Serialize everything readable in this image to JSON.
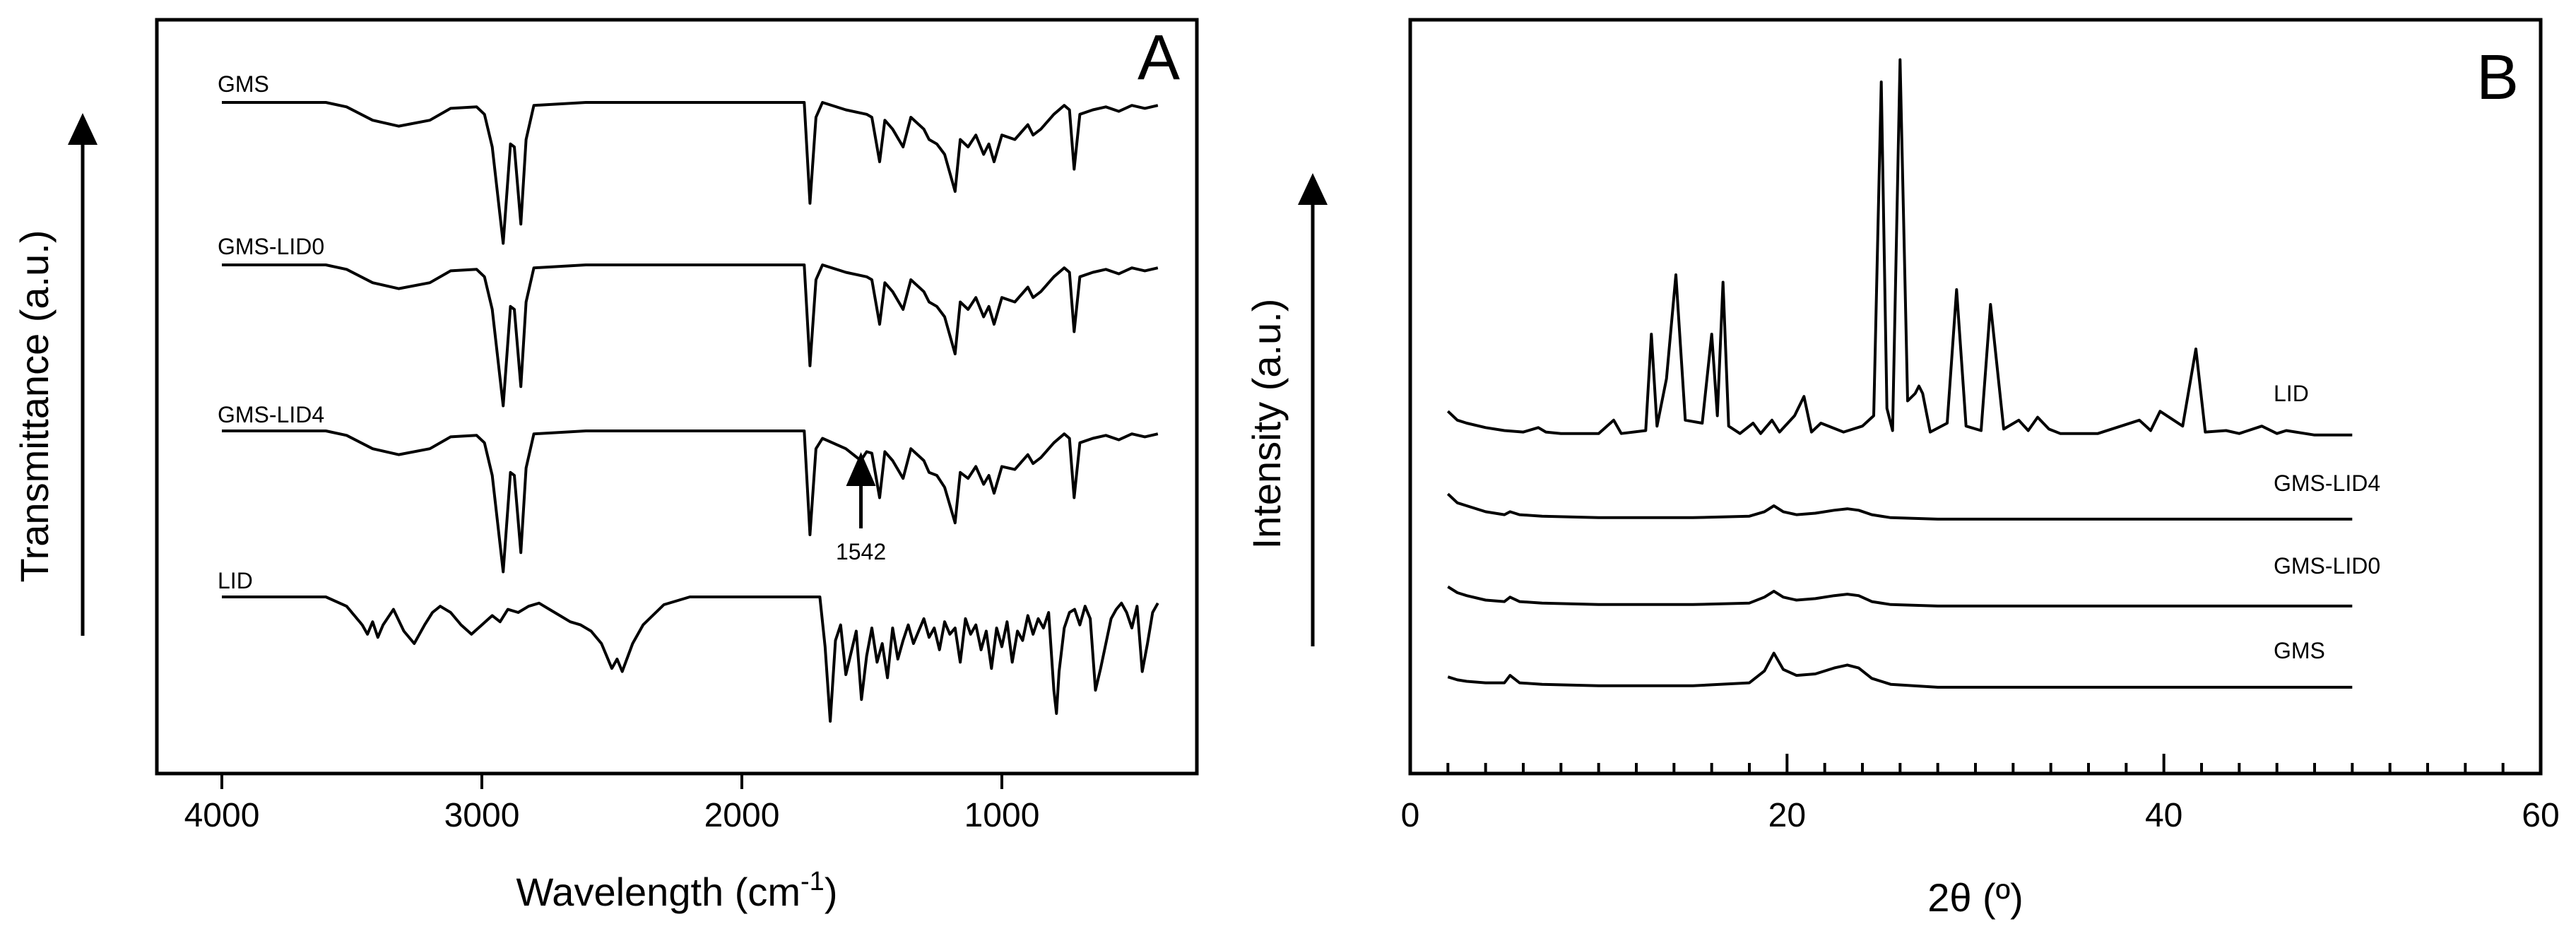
{
  "chart_data": [
    {
      "panel": "A",
      "type": "line",
      "title": "",
      "xlabel_main": "Wavelength (cm",
      "xlabel_sup": "-1",
      "xlabel_end": ")",
      "ylabel": "Transmittance (a.u.)",
      "xlim": [
        4250,
        250
      ],
      "xticks": [
        4000,
        3000,
        2000,
        1000
      ],
      "xtick_labels": [
        "4000",
        "3000",
        "2000",
        "1000"
      ],
      "grid": false,
      "series": [
        {
          "name": "GMS",
          "label": "GMS",
          "x": [
            4000,
            3600,
            3520,
            3420,
            3320,
            3200,
            3120,
            3020,
            2990,
            2960,
            2918,
            2890,
            2875,
            2850,
            2830,
            2800,
            2600,
            2200,
            1900,
            1760,
            1738,
            1715,
            1690,
            1600,
            1520,
            1500,
            1470,
            1450,
            1420,
            1380,
            1350,
            1300,
            1280,
            1250,
            1220,
            1180,
            1160,
            1130,
            1100,
            1070,
            1050,
            1030,
            1000,
            950,
            900,
            880,
            850,
            800,
            760,
            740,
            722,
            700,
            650,
            600,
            550,
            500,
            450,
            400
          ],
          "y": [
            0,
            0,
            3,
            12,
            16,
            12,
            4,
            3,
            8,
            30,
            95,
            28,
            30,
            82,
            25,
            2,
            0,
            0,
            0,
            0,
            68,
            10,
            0,
            5,
            8,
            10,
            40,
            12,
            18,
            30,
            10,
            18,
            25,
            28,
            35,
            60,
            25,
            30,
            22,
            35,
            28,
            40,
            22,
            25,
            15,
            22,
            18,
            8,
            2,
            5,
            45,
            8,
            5,
            3,
            6,
            2,
            4,
            2
          ]
        },
        {
          "name": "GMS-LID0",
          "label": "GMS-LID0",
          "x": [
            4000,
            3600,
            3520,
            3420,
            3320,
            3200,
            3120,
            3020,
            2990,
            2960,
            2918,
            2890,
            2875,
            2850,
            2830,
            2800,
            2600,
            2200,
            1900,
            1760,
            1738,
            1715,
            1690,
            1600,
            1520,
            1500,
            1470,
            1450,
            1420,
            1380,
            1350,
            1300,
            1280,
            1250,
            1220,
            1180,
            1160,
            1130,
            1100,
            1070,
            1050,
            1030,
            1000,
            950,
            900,
            880,
            850,
            800,
            760,
            740,
            722,
            700,
            650,
            600,
            550,
            500,
            450,
            400
          ],
          "y": [
            0,
            0,
            3,
            12,
            16,
            12,
            4,
            3,
            8,
            30,
            95,
            28,
            30,
            82,
            25,
            2,
            0,
            0,
            0,
            0,
            68,
            10,
            0,
            5,
            8,
            10,
            40,
            12,
            18,
            30,
            10,
            18,
            25,
            28,
            35,
            60,
            25,
            30,
            22,
            35,
            28,
            40,
            22,
            25,
            15,
            22,
            18,
            8,
            2,
            5,
            45,
            8,
            5,
            3,
            6,
            2,
            4,
            2
          ]
        },
        {
          "name": "GMS-LID4",
          "label": "GMS-LID4",
          "x": [
            4000,
            3600,
            3520,
            3420,
            3320,
            3200,
            3120,
            3020,
            2990,
            2960,
            2918,
            2890,
            2875,
            2850,
            2830,
            2800,
            2600,
            2200,
            1900,
            1760,
            1738,
            1715,
            1690,
            1600,
            1542,
            1520,
            1500,
            1470,
            1450,
            1420,
            1380,
            1350,
            1300,
            1280,
            1250,
            1220,
            1180,
            1160,
            1130,
            1100,
            1070,
            1050,
            1030,
            1000,
            950,
            900,
            880,
            850,
            800,
            760,
            740,
            722,
            700,
            650,
            600,
            550,
            500,
            450,
            400
          ],
          "y": [
            0,
            0,
            3,
            12,
            16,
            12,
            4,
            3,
            8,
            30,
            95,
            28,
            30,
            82,
            25,
            2,
            0,
            0,
            0,
            0,
            70,
            12,
            5,
            12,
            20,
            14,
            15,
            45,
            14,
            20,
            32,
            12,
            20,
            28,
            30,
            38,
            62,
            28,
            32,
            24,
            36,
            30,
            42,
            24,
            26,
            16,
            22,
            18,
            8,
            2,
            5,
            45,
            8,
            5,
            3,
            6,
            2,
            4,
            2
          ]
        },
        {
          "name": "LID",
          "label": "LID",
          "x": [
            4000,
            3600,
            3520,
            3460,
            3440,
            3420,
            3400,
            3380,
            3340,
            3300,
            3260,
            3220,
            3190,
            3160,
            3120,
            3080,
            3040,
            3000,
            2960,
            2930,
            2900,
            2860,
            2820,
            2780,
            2740,
            2700,
            2660,
            2620,
            2580,
            2540,
            2500,
            2480,
            2460,
            2420,
            2380,
            2300,
            2200,
            1900,
            1700,
            1680,
            1660,
            1640,
            1620,
            1600,
            1560,
            1540,
            1520,
            1500,
            1480,
            1460,
            1440,
            1420,
            1400,
            1380,
            1360,
            1340,
            1320,
            1300,
            1280,
            1260,
            1240,
            1220,
            1200,
            1180,
            1160,
            1140,
            1120,
            1100,
            1080,
            1060,
            1040,
            1020,
            1000,
            980,
            960,
            940,
            920,
            900,
            880,
            860,
            840,
            820,
            800,
            790,
            780,
            760,
            740,
            720,
            700,
            680,
            660,
            640,
            620,
            600,
            580,
            560,
            540,
            520,
            500,
            480,
            460,
            440,
            420,
            400
          ],
          "y": [
            0,
            0,
            6,
            18,
            24,
            16,
            26,
            18,
            8,
            22,
            30,
            18,
            10,
            6,
            10,
            18,
            24,
            18,
            12,
            16,
            8,
            10,
            6,
            4,
            8,
            12,
            16,
            18,
            22,
            30,
            46,
            40,
            48,
            30,
            18,
            5,
            0,
            0,
            0,
            32,
            80,
            28,
            18,
            50,
            22,
            66,
            38,
            20,
            42,
            30,
            52,
            20,
            40,
            28,
            18,
            30,
            22,
            14,
            26,
            20,
            34,
            16,
            24,
            20,
            42,
            14,
            24,
            18,
            34,
            22,
            46,
            20,
            32,
            16,
            42,
            22,
            28,
            12,
            24,
            14,
            20,
            10,
            60,
            75,
            48,
            20,
            10,
            8,
            18,
            6,
            14,
            60,
            46,
            30,
            14,
            8,
            4,
            10,
            20,
            6,
            48,
            30,
            10,
            4
          ]
        }
      ],
      "annotations": [
        {
          "text": "1542",
          "x": 1542
        }
      ]
    },
    {
      "panel": "B",
      "type": "line",
      "title": "",
      "xlabel": "2θ (º)",
      "ylabel": "Intensity (a.u.)",
      "xlim": [
        0,
        60
      ],
      "xticks": [
        0,
        20,
        40,
        60
      ],
      "xtick_labels": [
        "0",
        "20",
        "40",
        "60"
      ],
      "grid": false,
      "series": [
        {
          "name": "LID",
          "label": "LID",
          "x": [
            2,
            2.5,
            3,
            4,
            5,
            6,
            6.8,
            7.2,
            8,
            10,
            10.8,
            11.2,
            12.5,
            12.8,
            13.1,
            13.6,
            14.1,
            14.6,
            15.5,
            16,
            16.3,
            16.6,
            16.9,
            17.5,
            18.2,
            18.6,
            19.2,
            19.6,
            20.4,
            20.9,
            21.3,
            21.8,
            23,
            24,
            24.6,
            25,
            25.3,
            25.6,
            26,
            26.4,
            26.8,
            27,
            27.2,
            27.6,
            28.5,
            29,
            29.5,
            30.3,
            30.8,
            31.5,
            32.3,
            32.8,
            33.3,
            33.9,
            34.5,
            36.5,
            38.7,
            39.3,
            39.8,
            41,
            41.7,
            42.2,
            43.3,
            44,
            45.2,
            46,
            46.5,
            48,
            50
          ],
          "y": [
            18,
            12,
            10,
            7,
            5,
            4,
            7,
            4,
            3,
            3,
            12,
            3,
            5,
            70,
            8,
            40,
            110,
            12,
            10,
            70,
            15,
            105,
            8,
            3,
            10,
            3,
            12,
            4,
            15,
            28,
            4,
            10,
            4,
            8,
            15,
            240,
            20,
            5,
            255,
            25,
            30,
            35,
            30,
            4,
            10,
            100,
            8,
            5,
            90,
            6,
            12,
            5,
            14,
            6,
            3,
            3,
            12,
            5,
            18,
            8,
            60,
            4,
            5,
            3,
            8,
            3,
            5,
            2,
            2
          ]
        },
        {
          "name": "GMS-LID4",
          "label": "GMS-LID4",
          "x": [
            2,
            2.5,
            3,
            4,
            5,
            5.3,
            5.8,
            7,
            10,
            15,
            18,
            18.8,
            19.3,
            19.8,
            20.5,
            21.5,
            22.5,
            23.2,
            23.8,
            24.5,
            25.5,
            28,
            35,
            50
          ],
          "y": [
            18,
            12,
            10,
            6,
            4,
            6,
            4,
            3,
            2,
            2,
            3,
            6,
            10,
            6,
            4,
            5,
            7,
            8,
            7,
            4,
            2,
            1,
            1,
            1
          ]
        },
        {
          "name": "GMS-LID0",
          "label": "GMS-LID0",
          "x": [
            2,
            2.5,
            3,
            4,
            5,
            5.3,
            5.8,
            7,
            10,
            15,
            18,
            18.8,
            19.3,
            19.8,
            20.5,
            21.5,
            22.5,
            23.2,
            23.8,
            24.5,
            25.5,
            28,
            35,
            50
          ],
          "y": [
            14,
            10,
            8,
            5,
            4,
            7,
            4,
            3,
            2,
            2,
            3,
            7,
            11,
            7,
            5,
            6,
            8,
            9,
            8,
            4,
            2,
            1,
            1,
            1
          ]
        },
        {
          "name": "GMS",
          "label": "GMS",
          "x": [
            2,
            2.5,
            3,
            4,
            5,
            5.3,
            5.8,
            7,
            10,
            15,
            18,
            18.8,
            19.3,
            19.8,
            20.5,
            21.5,
            22.5,
            23.2,
            23.8,
            24.5,
            25.5,
            28,
            35,
            50
          ],
          "y": [
            8,
            6,
            5,
            4,
            4,
            9,
            4,
            3,
            2,
            2,
            4,
            12,
            24,
            13,
            9,
            10,
            14,
            16,
            14,
            7,
            3,
            1,
            1,
            1
          ]
        }
      ]
    }
  ],
  "panel_a": {
    "letter": "A"
  },
  "panel_b": {
    "letter": "B"
  }
}
